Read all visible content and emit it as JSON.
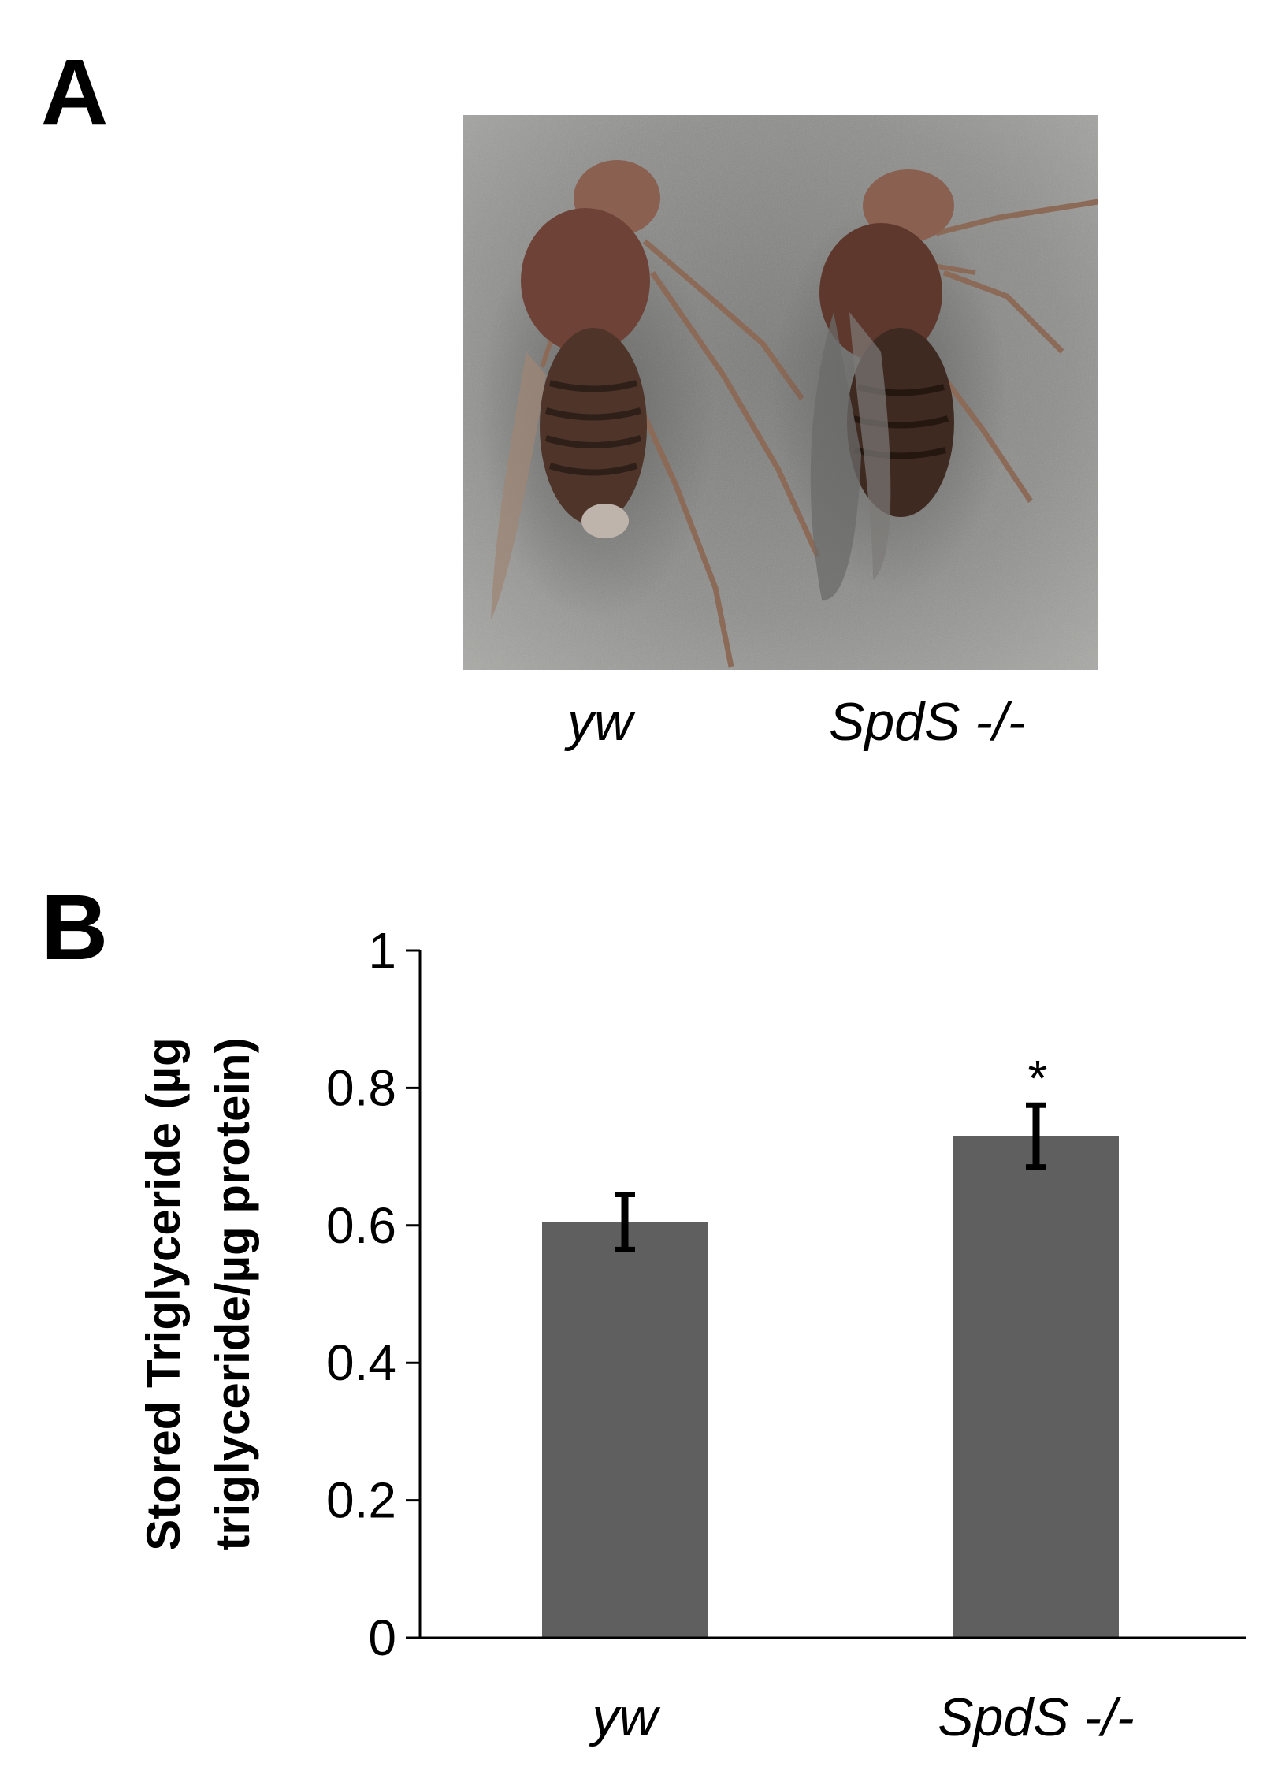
{
  "panels": {
    "a_label": "A",
    "b_label": "B"
  },
  "photo": {
    "captions": [
      "yw",
      "SpdS -/-"
    ]
  },
  "chart_data": {
    "type": "bar",
    "categories": [
      "yw",
      "SpdS -/-"
    ],
    "values": [
      0.605,
      0.73
    ],
    "errors": [
      0.04,
      0.045
    ],
    "annotations": [
      "",
      "*"
    ],
    "title": "",
    "xlabel": "",
    "ylabel_lines": [
      "Stored Triglyceride (µg",
      "triglyceride/µg protein)"
    ],
    "ylim": [
      0,
      1
    ],
    "yticks": [
      "0",
      "0.2",
      "0.4",
      "0.6",
      "0.8",
      "1"
    ],
    "ytick_values": [
      0,
      0.2,
      0.4,
      0.6,
      0.8,
      1
    ],
    "bar_color": "#5f5f5f",
    "grid": false,
    "legend": "none"
  }
}
